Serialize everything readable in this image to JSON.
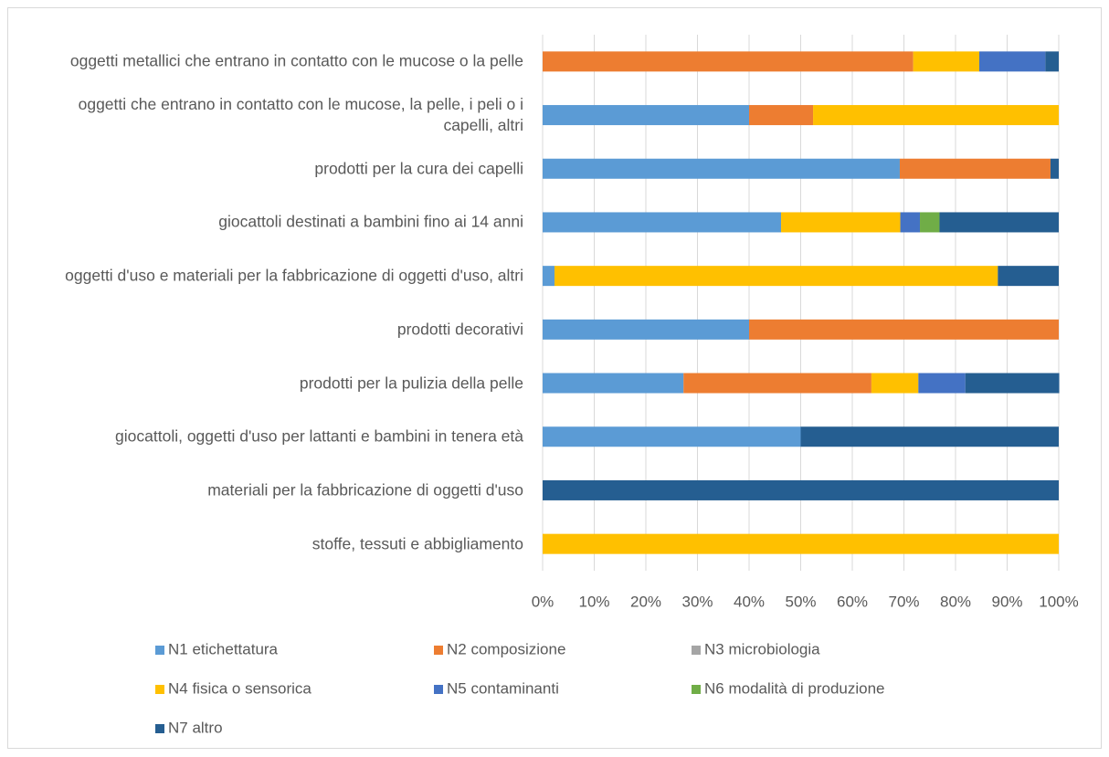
{
  "chart_data": {
    "type": "stacked-bar-horizontal",
    "categories": [
      "oggetti metallici che entrano in contatto con le mucose o la pelle",
      "oggetti che entrano in contatto con le mucose, la pelle, i peli o i capelli, altri",
      "prodotti per la cura dei capelli",
      "giocattoli destinati a bambini fino ai 14 anni",
      "oggetti d'uso e materiali per la fabbricazione di oggetti d'uso, altri",
      "prodotti decorativi",
      "prodotti per la pulizia della pelle",
      "giocattoli, oggetti d'uso per lattanti e bambini in tenera età",
      "materiali per la fabbricazione di oggetti d'uso",
      "stoffe, tessuti e abbigliamento"
    ],
    "series": [
      {
        "name": "N1 etichettatura",
        "color": "#5b9bd5",
        "values": [
          0,
          40,
          69.2,
          46.2,
          2.3,
          40,
          27.3,
          50,
          0,
          0
        ]
      },
      {
        "name": "N2 composizione",
        "color": "#ed7d31",
        "values": [
          71.8,
          12.4,
          29.2,
          0,
          0,
          60,
          36.4,
          0,
          0,
          0
        ]
      },
      {
        "name": "N3 microbiologia",
        "color": "#a5a5a5",
        "values": [
          0,
          0,
          0,
          0,
          0,
          0,
          0,
          0,
          0,
          0
        ]
      },
      {
        "name": "N4 fisica o sensorica",
        "color": "#ffc000",
        "values": [
          12.8,
          47.6,
          0,
          23.1,
          85.9,
          0,
          9.1,
          0,
          0,
          100
        ]
      },
      {
        "name": "N5 contaminanti",
        "color": "#4472c4",
        "values": [
          12.8,
          0,
          0,
          3.8,
          0,
          0,
          9.1,
          0,
          0,
          0
        ]
      },
      {
        "name": "N6 modalità di produzione",
        "color": "#70ad47",
        "values": [
          0,
          0,
          0,
          3.8,
          0,
          0,
          0,
          0,
          0,
          0
        ]
      },
      {
        "name": "N7 altro",
        "color": "#255e91",
        "values": [
          2.6,
          0,
          1.6,
          23.1,
          11.8,
          0,
          18.2,
          50,
          100,
          0
        ]
      }
    ],
    "xlim": [
      0,
      100
    ],
    "xticks": [
      {
        "value": 0,
        "label": "0%"
      },
      {
        "value": 10,
        "label": "10%"
      },
      {
        "value": 20,
        "label": "20%"
      },
      {
        "value": 30,
        "label": "30%"
      },
      {
        "value": 40,
        "label": "40%"
      },
      {
        "value": 50,
        "label": "50%"
      },
      {
        "value": 60,
        "label": "60%"
      },
      {
        "value": 70,
        "label": "70%"
      },
      {
        "value": 80,
        "label": "80%"
      },
      {
        "value": 90,
        "label": "90%"
      },
      {
        "value": 100,
        "label": "100%"
      }
    ],
    "grid": true,
    "legend": "bottom"
  }
}
